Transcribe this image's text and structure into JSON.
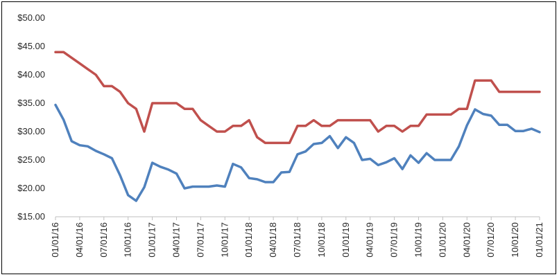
{
  "chart_data": {
    "type": "line",
    "title": "",
    "xlabel": "",
    "ylabel": "",
    "ylim": [
      15,
      50
    ],
    "y_ticks": [
      "$15.00",
      "$20.00",
      "$25.00",
      "$30.00",
      "$35.00",
      "$40.00",
      "$45.00",
      "$50.00"
    ],
    "x_tick_labels": [
      "01/01/16",
      "04/01/16",
      "07/01/16",
      "10/01/16",
      "01/01/17",
      "04/01/17",
      "07/01/17",
      "10/01/17",
      "01/01/18",
      "04/01/18",
      "07/01/18",
      "10/01/18",
      "01/01/19",
      "04/01/19",
      "07/01/19",
      "10/01/19",
      "01/01/20",
      "04/01/20",
      "07/01/20",
      "10/01/20",
      "01/01/21"
    ],
    "grid": false,
    "legend": "none",
    "x": [
      "01/01/16",
      "02/01/16",
      "03/01/16",
      "04/01/16",
      "05/01/16",
      "06/01/16",
      "07/01/16",
      "08/01/16",
      "09/01/16",
      "10/01/16",
      "11/01/16",
      "12/01/16",
      "01/01/17",
      "02/01/17",
      "03/01/17",
      "04/01/17",
      "05/01/17",
      "06/01/17",
      "07/01/17",
      "08/01/17",
      "09/01/17",
      "10/01/17",
      "11/01/17",
      "12/01/17",
      "01/01/18",
      "02/01/18",
      "03/01/18",
      "04/01/18",
      "05/01/18",
      "06/01/18",
      "07/01/18",
      "08/01/18",
      "09/01/18",
      "10/01/18",
      "11/01/18",
      "12/01/18",
      "01/01/19",
      "02/01/19",
      "03/01/19",
      "04/01/19",
      "05/01/19",
      "06/01/19",
      "07/01/19",
      "08/01/19",
      "09/01/19",
      "10/01/19",
      "11/01/19",
      "12/01/19",
      "01/01/20",
      "02/01/20",
      "03/01/20",
      "04/01/20",
      "05/01/20",
      "06/01/20",
      "07/01/20",
      "08/01/20",
      "09/01/20",
      "10/01/20",
      "11/01/20",
      "12/01/20",
      "01/01/21"
    ],
    "series": [
      {
        "color": "#C0504D",
        "values": [
          44,
          44,
          43,
          42,
          41,
          40,
          38,
          38,
          37,
          35,
          34,
          30,
          35,
          35,
          35,
          35,
          34,
          34,
          32,
          31,
          30,
          30,
          31,
          31,
          32,
          29,
          28,
          28,
          28,
          28,
          31,
          31,
          32,
          31,
          31,
          32,
          32,
          32,
          32,
          32,
          30,
          31,
          31,
          30,
          31,
          31,
          33,
          33,
          33,
          33,
          34,
          34,
          39,
          39,
          39,
          37,
          37,
          37,
          37,
          37,
          37
        ]
      },
      {
        "color": "#4F81BD",
        "values": [
          34.7,
          32.1,
          28.3,
          27.6,
          27.4,
          26.6,
          26,
          25.3,
          22.3,
          18.8,
          17.8,
          20.2,
          24.5,
          23.8,
          23.3,
          22.6,
          20,
          20.3,
          20.3,
          20.3,
          20.5,
          20.3,
          24.3,
          23.7,
          21.8,
          21.6,
          21.1,
          21.1,
          22.8,
          22.9,
          26,
          26.5,
          27.8,
          28,
          29.2,
          27.1,
          29,
          28,
          25,
          25.2,
          24.1,
          24.6,
          25.3,
          23.4,
          25.8,
          24.5,
          26.2,
          25,
          25,
          25,
          27.4,
          31.1,
          33.9,
          33.1,
          32.8,
          31.2,
          31.2,
          30.1,
          30.1,
          30.5,
          29.9
        ]
      }
    ]
  }
}
